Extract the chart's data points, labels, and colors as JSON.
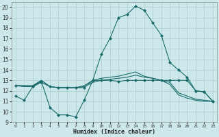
{
  "title": "",
  "xlabel": "Humidex (Indice chaleur)",
  "ylabel": "",
  "bg_color": "#cce8ea",
  "grid_color": "#aacccc",
  "line_color": "#1a6b6b",
  "xlim": [
    -0.5,
    23.5
  ],
  "ylim": [
    9,
    20.5
  ],
  "xticks": [
    0,
    1,
    2,
    3,
    4,
    5,
    6,
    7,
    8,
    9,
    10,
    11,
    12,
    13,
    14,
    15,
    16,
    17,
    18,
    19,
    20,
    21,
    22,
    23
  ],
  "yticks": [
    9,
    10,
    11,
    12,
    13,
    14,
    15,
    16,
    17,
    18,
    19,
    20
  ],
  "lines": [
    {
      "x": [
        0,
        1,
        2,
        3,
        4,
        5,
        6,
        7,
        8,
        9,
        10,
        11,
        12,
        13,
        14,
        15,
        16,
        17,
        18,
        19,
        20,
        21,
        22,
        23
      ],
      "y": [
        11.5,
        11.1,
        12.4,
        12.9,
        10.4,
        9.7,
        9.7,
        9.5,
        11.1,
        13.0,
        13.0,
        13.0,
        12.9,
        13.0,
        13.0,
        13.0,
        13.0,
        13.0,
        13.0,
        13.0,
        13.0,
        12.0,
        11.9,
        11.0
      ],
      "marker": true
    },
    {
      "x": [
        0,
        1,
        2,
        3,
        4,
        5,
        6,
        7,
        8,
        9,
        10,
        11,
        12,
        13,
        14,
        15,
        16,
        17,
        18,
        19,
        20,
        21,
        22,
        23
      ],
      "y": [
        12.5,
        12.5,
        12.5,
        13.0,
        12.4,
        12.3,
        12.3,
        12.3,
        12.4,
        12.8,
        13.0,
        13.1,
        13.2,
        13.3,
        13.5,
        13.3,
        13.2,
        13.0,
        12.8,
        11.8,
        11.5,
        11.2,
        11.1,
        11.0
      ],
      "marker": false
    },
    {
      "x": [
        0,
        1,
        2,
        3,
        4,
        5,
        6,
        7,
        8,
        9,
        10,
        11,
        12,
        13,
        14,
        15,
        16,
        17,
        18,
        19,
        20,
        21,
        22,
        23
      ],
      "y": [
        12.5,
        12.4,
        12.4,
        13.0,
        12.4,
        12.3,
        12.3,
        12.3,
        12.5,
        13.0,
        13.2,
        13.3,
        13.4,
        13.6,
        13.8,
        13.4,
        13.2,
        13.0,
        12.6,
        11.6,
        11.3,
        11.1,
        11.0,
        11.0
      ],
      "marker": false
    },
    {
      "x": [
        0,
        2,
        3,
        4,
        5,
        6,
        7,
        8,
        9,
        10,
        11,
        12,
        13,
        14,
        15,
        16,
        17,
        18,
        19,
        20,
        21,
        22,
        23
      ],
      "y": [
        12.5,
        12.4,
        12.8,
        12.4,
        12.3,
        12.3,
        12.3,
        12.3,
        13.0,
        15.5,
        17.0,
        19.0,
        19.3,
        20.1,
        19.7,
        18.5,
        17.3,
        14.7,
        14.0,
        13.3,
        12.0,
        11.9,
        11.0
      ],
      "marker": true
    }
  ]
}
